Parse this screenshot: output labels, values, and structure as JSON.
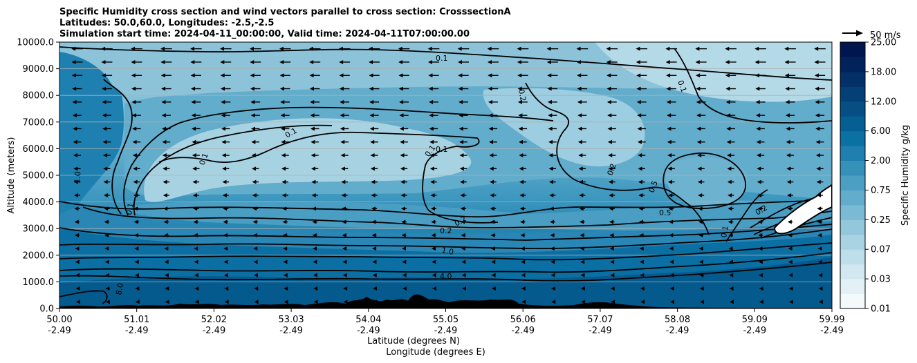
{
  "chart_data": {
    "type": "heatmap",
    "title_lines": [
      "Specific Humidity cross section and wind vectors parallel to cross section: CrosssectionA",
      "Latitudes: 50.0,60.0, Longitudes: -2.5,-2.5",
      "Simulation start time: 2024-04-11_00:00:00, Valid time: 2024-04-11T07:00:00.00"
    ],
    "ylabel": "Altitude (meters)",
    "xlabel_lines": [
      "Latitude (degrees N)",
      "Longitude (degrees E)"
    ],
    "ylim": [
      0,
      10000
    ],
    "y_ticks": [
      "0.0",
      "1000.0",
      "2000.0",
      "3000.0",
      "4000.0",
      "5000.0",
      "6000.0",
      "7000.0",
      "8000.0",
      "9000.0",
      "10000.0"
    ],
    "x_ticks": [
      {
        "lat": "50.00",
        "lon": "-2.49"
      },
      {
        "lat": "51.01",
        "lon": "-2.49"
      },
      {
        "lat": "52.02",
        "lon": "-2.49"
      },
      {
        "lat": "53.03",
        "lon": "-2.49"
      },
      {
        "lat": "54.04",
        "lon": "-2.49"
      },
      {
        "lat": "55.05",
        "lon": "-2.49"
      },
      {
        "lat": "56.06",
        "lon": "-2.49"
      },
      {
        "lat": "57.07",
        "lon": "-2.49"
      },
      {
        "lat": "58.08",
        "lon": "-2.49"
      },
      {
        "lat": "59.09",
        "lon": "-2.49"
      },
      {
        "lat": "59.99",
        "lon": "-2.49"
      }
    ],
    "grid": "horizontal",
    "colorbar": {
      "label": "Specific Humidity g/kg",
      "levels": [
        0.01,
        0.02,
        0.03,
        0.05,
        0.07,
        0.1,
        0.25,
        0.5,
        0.75,
        1.0,
        2.0,
        4.0,
        6.0,
        9.0,
        12.0,
        15.0,
        18.0,
        21.0,
        25.0
      ],
      "tick_labels": [
        "0.01",
        "0.03",
        "0.07",
        "0.25",
        "0.75",
        "2.00",
        "6.00",
        "12.00",
        "18.00",
        "25.00"
      ],
      "colors": [
        "#f4fafc",
        "#e3f1f6",
        "#d1e8f1",
        "#bddfea",
        "#a9d3e3",
        "#93c7dc",
        "#7bbad4",
        "#62accc",
        "#4b9fc3",
        "#3590ba",
        "#1f80b0",
        "#0a71a2",
        "#065f93",
        "#054f84",
        "#043f76",
        "#033068",
        "#02225b",
        "#01154e"
      ]
    },
    "wind_reference": {
      "label": "50 m/s",
      "speed": 50
    },
    "wind": {
      "direction": "toward decreasing latitude (arrows point left)"
    },
    "contour_labels": [
      "0.1",
      "0.2",
      "0.5",
      "1.0",
      "4.0",
      "8.0"
    ],
    "terrain": "black filled orography along the bottom"
  }
}
